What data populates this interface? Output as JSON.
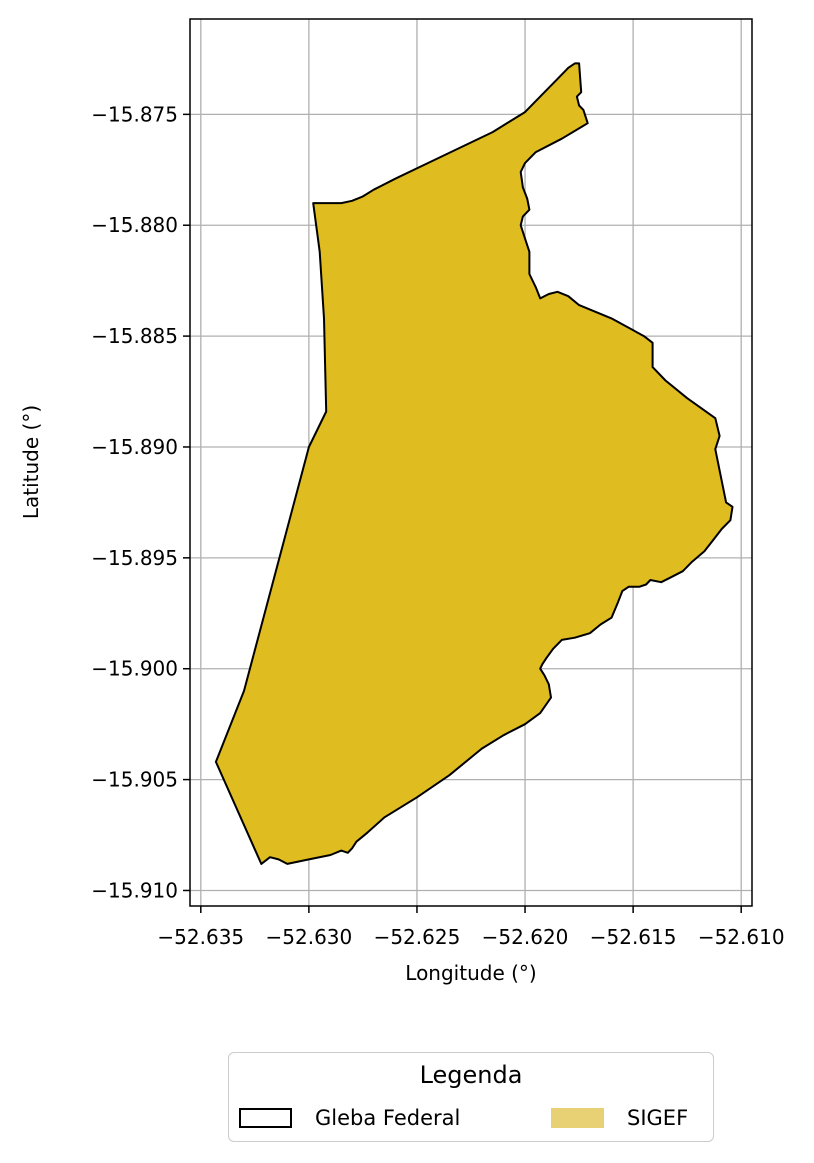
{
  "chart_data": {
    "type": "map",
    "xlabel": "Longitude (°)",
    "ylabel": "Latitude (°)",
    "xlim": [
      -52.6355,
      -52.6095
    ],
    "ylim": [
      -15.9107,
      -15.8707
    ],
    "xticks": [
      -52.635,
      -52.63,
      -52.625,
      -52.62,
      -52.615,
      -52.61
    ],
    "xtick_labels": [
      "−52.635",
      "−52.630",
      "−52.625",
      "−52.620",
      "−52.615",
      "−52.610"
    ],
    "yticks": [
      -15.875,
      -15.88,
      -15.885,
      -15.89,
      -15.895,
      -15.9,
      -15.905,
      -15.91
    ],
    "ytick_labels": [
      "−15.875",
      "−15.880",
      "−15.885",
      "−15.890",
      "−15.895",
      "−15.900",
      "−15.905",
      "−15.910"
    ],
    "grid": true,
    "legend": {
      "title": "Legenda",
      "placement": "bottom-center",
      "entries": [
        {
          "label": "Gleba Federal",
          "style": "outline",
          "edge_color": "#000000"
        },
        {
          "label": "SIGEF",
          "style": "fill",
          "fill_color": "#E8D174"
        }
      ]
    },
    "polygon": {
      "fill_color": "#DFBC20",
      "edge_color": "#000000",
      "coordinates": [
        [
          -52.6293,
          -15.879
        ],
        [
          -52.6285,
          -15.879
        ],
        [
          -52.628,
          -15.8789
        ],
        [
          -52.6275,
          -15.8787
        ],
        [
          -52.627,
          -15.8784
        ],
        [
          -52.626,
          -15.8779
        ],
        [
          -52.6245,
          -15.8772
        ],
        [
          -52.623,
          -15.8765
        ],
        [
          -52.6215,
          -15.8758
        ],
        [
          -52.62,
          -15.8749
        ],
        [
          -52.6193,
          -15.8742
        ],
        [
          -52.6185,
          -15.8734
        ],
        [
          -52.618,
          -15.8729
        ],
        [
          -52.6177,
          -15.8727
        ],
        [
          -52.6175,
          -15.8727
        ],
        [
          -52.6174,
          -15.874
        ],
        [
          -52.6176,
          -15.8742
        ],
        [
          -52.6175,
          -15.8746
        ],
        [
          -52.6173,
          -15.8748
        ],
        [
          -52.6171,
          -15.8754
        ],
        [
          -52.6183,
          -15.8761
        ],
        [
          -52.6195,
          -15.8767
        ],
        [
          -52.62,
          -15.8772
        ],
        [
          -52.6202,
          -15.8776
        ],
        [
          -52.6201,
          -15.8783
        ],
        [
          -52.6199,
          -15.8788
        ],
        [
          -52.6198,
          -15.8793
        ],
        [
          -52.6201,
          -15.8796
        ],
        [
          -52.6202,
          -15.88
        ],
        [
          -52.62,
          -15.8806
        ],
        [
          -52.6198,
          -15.8812
        ],
        [
          -52.6198,
          -15.8822
        ],
        [
          -52.6195,
          -15.8828
        ],
        [
          -52.6193,
          -15.8833
        ],
        [
          -52.6189,
          -15.8831
        ],
        [
          -52.6185,
          -15.883
        ],
        [
          -52.618,
          -15.8832
        ],
        [
          -52.6175,
          -15.8836
        ],
        [
          -52.616,
          -15.8842
        ],
        [
          -52.6145,
          -15.885
        ],
        [
          -52.6141,
          -15.8853
        ],
        [
          -52.6141,
          -15.8864
        ],
        [
          -52.6135,
          -15.887
        ],
        [
          -52.6125,
          -15.8878
        ],
        [
          -52.6112,
          -15.8887
        ],
        [
          -52.611,
          -15.8895
        ],
        [
          -52.6112,
          -15.8901
        ],
        [
          -52.6107,
          -15.8925
        ],
        [
          -52.6104,
          -15.8927
        ],
        [
          -52.6105,
          -15.8933
        ],
        [
          -52.6109,
          -15.8937
        ],
        [
          -52.6113,
          -15.8942
        ],
        [
          -52.6117,
          -15.8947
        ],
        [
          -52.6123,
          -15.8952
        ],
        [
          -52.6127,
          -15.8956
        ],
        [
          -52.6133,
          -15.8959
        ],
        [
          -52.6137,
          -15.8961
        ],
        [
          -52.6142,
          -15.896
        ],
        [
          -52.6144,
          -15.8962
        ],
        [
          -52.6147,
          -15.8963
        ],
        [
          -52.6152,
          -15.8963
        ],
        [
          -52.6155,
          -15.8965
        ],
        [
          -52.6157,
          -15.897
        ],
        [
          -52.616,
          -15.8977
        ],
        [
          -52.6165,
          -15.898
        ],
        [
          -52.617,
          -15.8984
        ],
        [
          -52.6177,
          -15.8986
        ],
        [
          -52.6183,
          -15.8987
        ],
        [
          -52.6187,
          -15.8991
        ],
        [
          -52.619,
          -15.8995
        ],
        [
          -52.6192,
          -15.8998
        ],
        [
          -52.6193,
          -15.9
        ],
        [
          -52.6191,
          -15.9003
        ],
        [
          -52.6189,
          -15.9007
        ],
        [
          -52.6188,
          -15.9013
        ],
        [
          -52.6193,
          -15.902
        ],
        [
          -52.62,
          -15.9025
        ],
        [
          -52.621,
          -15.903
        ],
        [
          -52.622,
          -15.9036
        ],
        [
          -52.6235,
          -15.9048
        ],
        [
          -52.625,
          -15.9058
        ],
        [
          -52.6265,
          -15.9067
        ],
        [
          -52.6273,
          -15.9074
        ],
        [
          -52.6278,
          -15.9078
        ],
        [
          -52.628,
          -15.9081
        ],
        [
          -52.6282,
          -15.9083
        ],
        [
          -52.6285,
          -15.9082
        ],
        [
          -52.629,
          -15.9084
        ],
        [
          -52.63,
          -15.9086
        ],
        [
          -52.631,
          -15.9088
        ],
        [
          -52.6314,
          -15.9086
        ],
        [
          -52.6318,
          -15.9085
        ],
        [
          -52.6322,
          -15.9088
        ],
        [
          -52.6343,
          -15.9042
        ],
        [
          -52.633,
          -15.901
        ],
        [
          -52.63,
          -15.89
        ],
        [
          -52.6292,
          -15.8884
        ],
        [
          -52.6293,
          -15.8842
        ],
        [
          -52.6295,
          -15.8812
        ],
        [
          -52.6298,
          -15.879
        ],
        [
          -52.6293,
          -15.879
        ]
      ]
    }
  }
}
